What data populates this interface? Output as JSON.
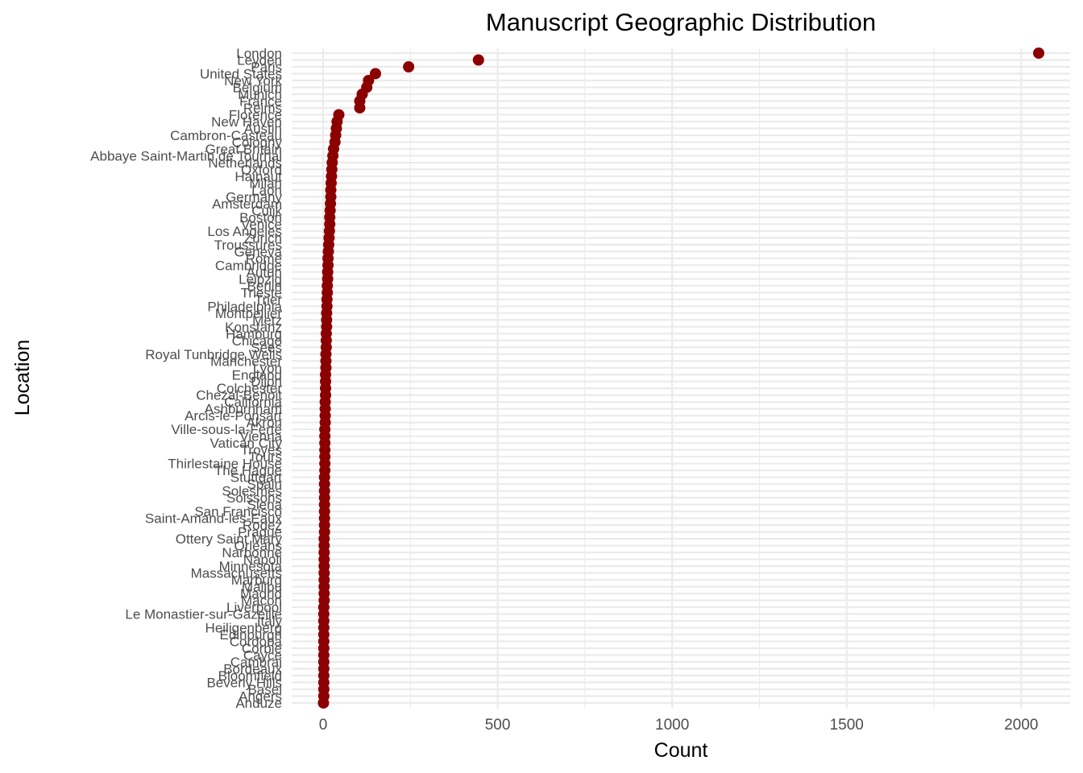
{
  "chart_data": {
    "type": "scatter",
    "title": "Manuscript Geographic Distribution",
    "xlabel": "Count",
    "ylabel": "Location",
    "xlim": [
      -90,
      2140
    ],
    "xticks": [
      0,
      500,
      1000,
      1500,
      2000
    ],
    "grid": true,
    "legend": "none",
    "colors": {
      "point": "#8b0000",
      "grid": "#ebebeb",
      "tick_text": "#4d4d4d"
    },
    "categories": [
      "London",
      "Leyden",
      "Paris",
      "United States",
      "New York",
      "Belgium",
      "Munich",
      "France",
      "Reims",
      "Florence",
      "New Haven",
      "Austin",
      "Cambron-Casteau",
      "Cologny",
      "Great Britain",
      "Abbaye Saint-Martin de Tournai",
      "Netherlands",
      "Oxford",
      "Hainaut",
      "Milan",
      "Laon",
      "Germany",
      "Amsterdam",
      "Cuijk",
      "Boston",
      "Venice",
      "Los Angeles",
      "Zurich",
      "Troussures",
      "Geneva",
      "Rome",
      "Cambridge",
      "Autun",
      "Leipzig",
      "Berlin",
      "Trieste",
      "Trier",
      "Philadelphia",
      "Montpellier",
      "Metz",
      "Konstanz",
      "Hamburg",
      "Chicago",
      "Sées",
      "Royal Tunbridge Wells",
      "Manchester",
      "Lyon",
      "England",
      "Dijon",
      "Colchester",
      "Chezal-Benoit",
      "California",
      "Ashburnham",
      "Arcis-le-Ponsart",
      "Akron",
      "Ville-sous-la-Ferté",
      "Vienna",
      "Vatican City",
      "Troyes",
      "Tours",
      "Thirlestaine House",
      "The Hague",
      "Stuttgart",
      "Spain",
      "Solesmes",
      "Soissons",
      "Siena",
      "San Francisco",
      "Saint-Amand-les-Eaux",
      "Rodez",
      "Prague",
      "Ottery Saint Mary",
      "Orléans",
      "Narbonne",
      "Napoli",
      "Minnesota",
      "Massachusetts",
      "Marburg",
      "Malibu",
      "Madrid",
      "Macon",
      "Liverpool",
      "Le Monastier-sur-Gazeille",
      "Italy",
      "Heiligenberg",
      "Edinburgh",
      "Cordoba",
      "Corbie",
      "Cayce",
      "Cambrai",
      "Bordeaux",
      "Bloomfield",
      "Beverly Hills",
      "Basel",
      "Angers",
      "Anduze"
    ],
    "values": [
      2050,
      445,
      245,
      150,
      130,
      125,
      112,
      105,
      105,
      45,
      40,
      38,
      36,
      34,
      30,
      28,
      26,
      25,
      24,
      23,
      22,
      22,
      21,
      20,
      19,
      19,
      18,
      17,
      16,
      15,
      14,
      14,
      13,
      13,
      12,
      12,
      11,
      11,
      10,
      10,
      10,
      9,
      9,
      9,
      8,
      8,
      8,
      7,
      7,
      7,
      7,
      6,
      6,
      6,
      6,
      5,
      5,
      5,
      5,
      5,
      5,
      5,
      4,
      4,
      4,
      4,
      4,
      4,
      4,
      4,
      4,
      3,
      3,
      3,
      3,
      3,
      3,
      3,
      3,
      3,
      3,
      2,
      2,
      2,
      2,
      2,
      2,
      2,
      2,
      2,
      2,
      2,
      2,
      2,
      2,
      1
    ]
  }
}
